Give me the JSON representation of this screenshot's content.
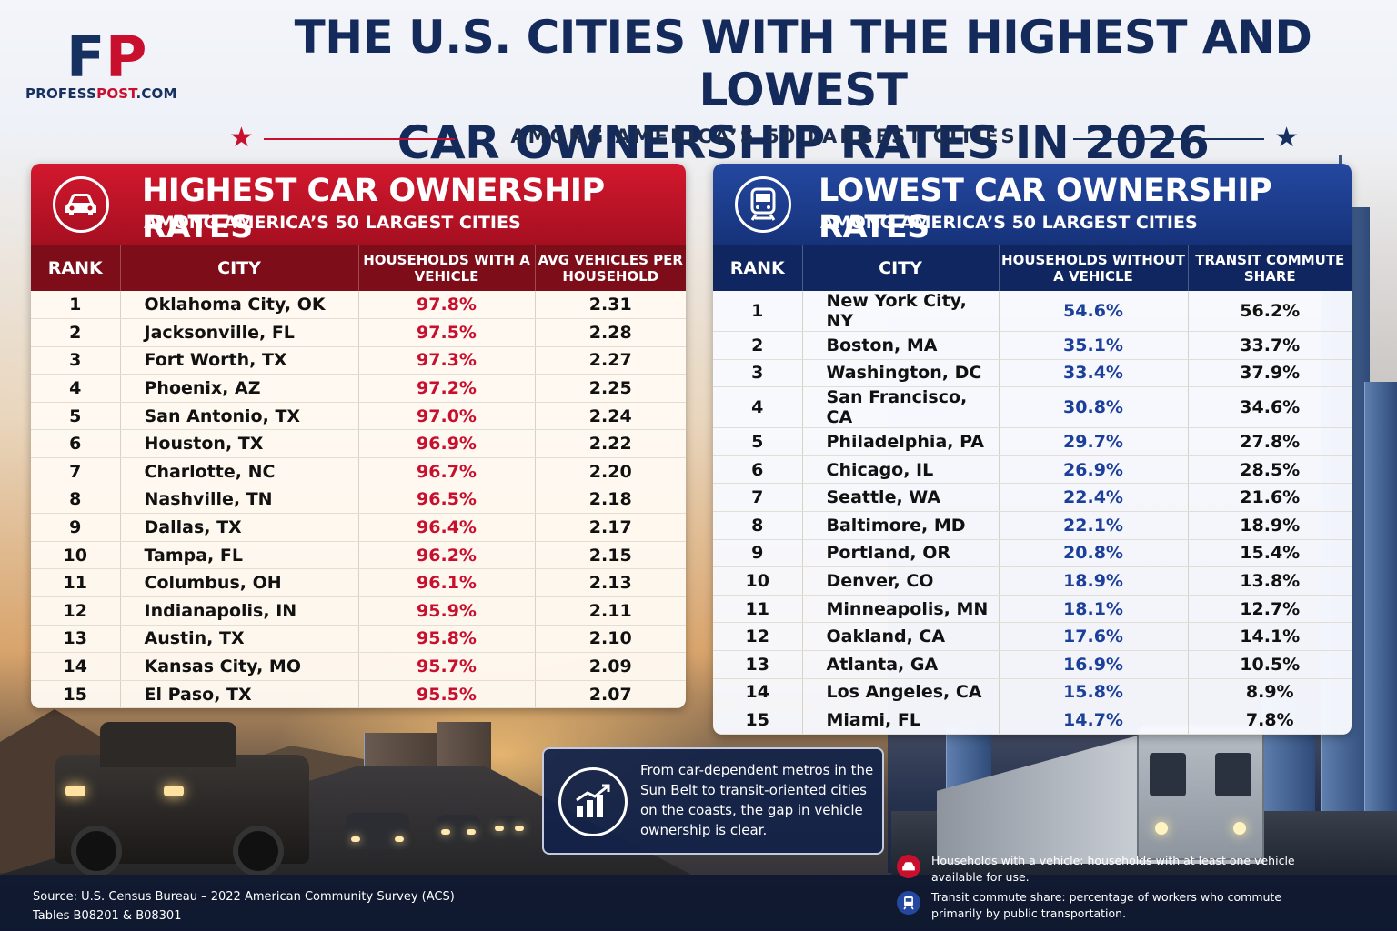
{
  "brand": {
    "logo_f": "F",
    "logo_p": "P",
    "name_a": "PROFESS",
    "name_b": "POST",
    "name_c": ".COM"
  },
  "header": {
    "title_line1": "THE U.S. CITIES WITH THE HIGHEST AND LOWEST",
    "title_line2": "CAR OWNERSHIP RATES IN 2026",
    "subtitle": "AMONG AMERICA’S 50 LARGEST CITIES",
    "star_left": "★",
    "star_right": "★",
    "star_left_color": "#c8102e",
    "star_right_color": "#16305f"
  },
  "highest": {
    "title": "HIGHEST CAR OWNERSHIP RATES",
    "subtitle": "AMONG AMERICA’S 50 LARGEST CITIES",
    "icon": "car-icon",
    "accent": "#c8102e",
    "headers": [
      "RANK",
      "CITY",
      "HOUSEHOLDS WITH A VEHICLE",
      "AVG VEHICLES PER HOUSEHOLD"
    ],
    "rows": [
      [
        "1",
        "Oklahoma City, OK",
        "97.8%",
        "2.31"
      ],
      [
        "2",
        "Jacksonville, FL",
        "97.5%",
        "2.28"
      ],
      [
        "3",
        "Fort Worth, TX",
        "97.3%",
        "2.27"
      ],
      [
        "4",
        "Phoenix, AZ",
        "97.2%",
        "2.25"
      ],
      [
        "5",
        "San Antonio, TX",
        "97.0%",
        "2.24"
      ],
      [
        "6",
        "Houston, TX",
        "96.9%",
        "2.22"
      ],
      [
        "7",
        "Charlotte, NC",
        "96.7%",
        "2.20"
      ],
      [
        "8",
        "Nashville, TN",
        "96.5%",
        "2.18"
      ],
      [
        "9",
        "Dallas, TX",
        "96.4%",
        "2.17"
      ],
      [
        "10",
        "Tampa, FL",
        "96.2%",
        "2.15"
      ],
      [
        "11",
        "Columbus, OH",
        "96.1%",
        "2.13"
      ],
      [
        "12",
        "Indianapolis, IN",
        "95.9%",
        "2.11"
      ],
      [
        "13",
        "Austin, TX",
        "95.8%",
        "2.10"
      ],
      [
        "14",
        "Kansas City, MO",
        "95.7%",
        "2.09"
      ],
      [
        "15",
        "El Paso, TX",
        "95.5%",
        "2.07"
      ]
    ]
  },
  "lowest": {
    "title": "LOWEST CAR OWNERSHIP RATES",
    "subtitle": "AMONG AMERICA’S 50 LARGEST CITIES",
    "icon": "train-icon",
    "accent": "#1b3f9a",
    "headers": [
      "RANK",
      "CITY",
      "HOUSEHOLDS WITHOUT A VEHICLE",
      "TRANSIT COMMUTE SHARE"
    ],
    "rows": [
      [
        "1",
        "New York City, NY",
        "54.6%",
        "56.2%"
      ],
      [
        "2",
        "Boston, MA",
        "35.1%",
        "33.7%"
      ],
      [
        "3",
        "Washington, DC",
        "33.4%",
        "37.9%"
      ],
      [
        "4",
        "San Francisco, CA",
        "30.8%",
        "34.6%"
      ],
      [
        "5",
        "Philadelphia, PA",
        "29.7%",
        "27.8%"
      ],
      [
        "6",
        "Chicago, IL",
        "26.9%",
        "28.5%"
      ],
      [
        "7",
        "Seattle, WA",
        "22.4%",
        "21.6%"
      ],
      [
        "8",
        "Baltimore, MD",
        "22.1%",
        "18.9%"
      ],
      [
        "9",
        "Portland, OR",
        "20.8%",
        "15.4%"
      ],
      [
        "10",
        "Denver, CO",
        "18.9%",
        "13.8%"
      ],
      [
        "11",
        "Minneapolis, MN",
        "18.1%",
        "12.7%"
      ],
      [
        "12",
        "Oakland, CA",
        "17.6%",
        "14.1%"
      ],
      [
        "13",
        "Atlanta, GA",
        "16.9%",
        "10.5%"
      ],
      [
        "14",
        "Los Angeles, CA",
        "15.8%",
        "8.9%"
      ],
      [
        "15",
        "Miami, FL",
        "14.7%",
        "7.8%"
      ]
    ]
  },
  "callout": {
    "icon": "bar-chart-icon",
    "text": "From car-dependent metros in the Sun Belt to transit-oriented cities on the coasts, the gap in vehicle ownership is clear."
  },
  "footer": {
    "source_line1": "Source: U.S. Census Bureau – 2022 American Community Survey (ACS)",
    "source_line2": "Tables B08201 & B08301",
    "note1": "Households with a vehicle: households with at least one vehicle available for use.",
    "note2": "Transit commute share: percentage of workers who commute primarily by public transportation."
  },
  "chart_data": [
    {
      "type": "table",
      "title": "HIGHEST CAR OWNERSHIP RATES",
      "columns": [
        "RANK",
        "CITY",
        "HOUSEHOLDS WITH A VEHICLE",
        "AVG VEHICLES PER HOUSEHOLD"
      ],
      "categories": [
        "Oklahoma City, OK",
        "Jacksonville, FL",
        "Fort Worth, TX",
        "Phoenix, AZ",
        "San Antonio, TX",
        "Houston, TX",
        "Charlotte, NC",
        "Nashville, TN",
        "Dallas, TX",
        "Tampa, FL",
        "Columbus, OH",
        "Indianapolis, IN",
        "Austin, TX",
        "Kansas City, MO",
        "El Paso, TX"
      ],
      "series": [
        {
          "name": "HOUSEHOLDS WITH A VEHICLE",
          "values": [
            97.8,
            97.5,
            97.3,
            97.2,
            97.0,
            96.9,
            96.7,
            96.5,
            96.4,
            96.2,
            96.1,
            95.9,
            95.8,
            95.7,
            95.5
          ]
        },
        {
          "name": "AVG VEHICLES PER HOUSEHOLD",
          "values": [
            2.31,
            2.28,
            2.27,
            2.25,
            2.24,
            2.22,
            2.2,
            2.18,
            2.17,
            2.15,
            2.13,
            2.11,
            2.1,
            2.09,
            2.07
          ]
        }
      ]
    },
    {
      "type": "table",
      "title": "LOWEST CAR OWNERSHIP RATES",
      "columns": [
        "RANK",
        "CITY",
        "HOUSEHOLDS WITHOUT A VEHICLE",
        "TRANSIT COMMUTE SHARE"
      ],
      "categories": [
        "New York City, NY",
        "Boston, MA",
        "Washington, DC",
        "San Francisco, CA",
        "Philadelphia, PA",
        "Chicago, IL",
        "Seattle, WA",
        "Baltimore, MD",
        "Portland, OR",
        "Denver, CO",
        "Minneapolis, MN",
        "Oakland, CA",
        "Atlanta, GA",
        "Los Angeles, CA",
        "Miami, FL"
      ],
      "series": [
        {
          "name": "HOUSEHOLDS WITHOUT A VEHICLE",
          "values": [
            54.6,
            35.1,
            33.4,
            30.8,
            29.7,
            26.9,
            22.4,
            22.1,
            20.8,
            18.9,
            18.1,
            17.6,
            16.9,
            15.8,
            14.7
          ]
        },
        {
          "name": "TRANSIT COMMUTE SHARE",
          "values": [
            56.2,
            33.7,
            37.9,
            34.6,
            27.8,
            28.5,
            21.6,
            18.9,
            15.4,
            13.8,
            12.7,
            14.1,
            10.5,
            8.9,
            7.8
          ]
        }
      ]
    }
  ]
}
